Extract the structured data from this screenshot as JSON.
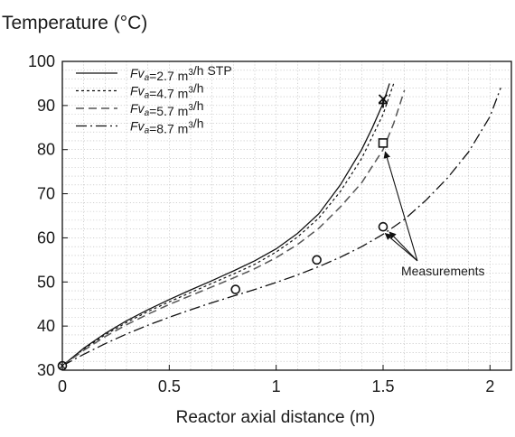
{
  "chart_data": {
    "type": "line",
    "title": "",
    "xlabel": "Reactor axial distance (m)",
    "ylabel": "Temperature (°C)",
    "xlim": [
      0,
      2.1
    ],
    "ylim": [
      30,
      100
    ],
    "x_ticks": [
      0,
      0.5,
      1,
      1.5,
      2
    ],
    "x_tick_labels": [
      "0",
      "0.5",
      "1",
      "1.5",
      "2"
    ],
    "y_ticks": [
      30,
      40,
      50,
      60,
      70,
      80,
      90,
      100
    ],
    "y_tick_labels": [
      "30",
      "40",
      "50",
      "60",
      "70",
      "80",
      "90",
      "100"
    ],
    "grid": true,
    "legend_position": "top-left",
    "series": [
      {
        "name": "Fva=2.7 m3/h STP",
        "legend_parts": [
          {
            "t": "Fv",
            "i": true
          },
          {
            "t": "a",
            "i": true,
            "sub": true
          },
          {
            "t": "=2.7 m"
          },
          {
            "t": "3",
            "sup": true
          },
          {
            "t": "/h STP"
          }
        ],
        "style": "solid",
        "color": "#111111",
        "x": [
          0,
          0.1,
          0.2,
          0.3,
          0.4,
          0.5,
          0.6,
          0.7,
          0.8,
          0.9,
          1.0,
          1.1,
          1.2,
          1.3,
          1.4,
          1.45,
          1.5,
          1.53
        ],
        "y": [
          31,
          35,
          38.3,
          41.2,
          43.7,
          46,
          48.2,
          50.3,
          52.5,
          54.8,
          57.5,
          61,
          65.5,
          72,
          80,
          85,
          90.5,
          95
        ]
      },
      {
        "name": "Fva=4.7 m3/h",
        "legend_parts": [
          {
            "t": "Fv",
            "i": true
          },
          {
            "t": "a",
            "i": true,
            "sub": true
          },
          {
            "t": "=4.7 m"
          },
          {
            "t": "3",
            "sup": true
          },
          {
            "t": "/h"
          }
        ],
        "style": "dotted",
        "color": "#111111",
        "x": [
          0,
          0.1,
          0.2,
          0.3,
          0.4,
          0.5,
          0.6,
          0.7,
          0.8,
          0.9,
          1.0,
          1.1,
          1.2,
          1.3,
          1.4,
          1.5,
          1.55
        ],
        "y": [
          31,
          34.8,
          38,
          40.8,
          43.3,
          45.5,
          47.6,
          49.7,
          51.8,
          54,
          56.8,
          60.2,
          64.5,
          70.5,
          78,
          88,
          95
        ]
      },
      {
        "name": "Fva=5.7 m3/h",
        "legend_parts": [
          {
            "t": "Fv",
            "i": true
          },
          {
            "t": "a",
            "i": true,
            "sub": true
          },
          {
            "t": "=5.7 m"
          },
          {
            "t": "3",
            "sup": true
          },
          {
            "t": "/h"
          }
        ],
        "style": "dashed",
        "color": "#555555",
        "x": [
          0,
          0.1,
          0.2,
          0.3,
          0.4,
          0.5,
          0.6,
          0.7,
          0.8,
          0.9,
          1.0,
          1.1,
          1.2,
          1.3,
          1.4,
          1.5,
          1.55,
          1.6
        ],
        "y": [
          31,
          34.5,
          37.6,
          40.3,
          42.7,
          44.9,
          46.9,
          48.9,
          50.9,
          53,
          55.5,
          58.5,
          62.2,
          67,
          72.5,
          80,
          86,
          93.5
        ]
      },
      {
        "name": "Fva=8.7 m3/h",
        "legend_parts": [
          {
            "t": "Fv",
            "i": true
          },
          {
            "t": "a",
            "i": true,
            "sub": true
          },
          {
            "t": "=8.7 m"
          },
          {
            "t": "3",
            "sup": true
          },
          {
            "t": "/h"
          }
        ],
        "style": "dashdot",
        "color": "#111111",
        "x": [
          0,
          0.1,
          0.2,
          0.3,
          0.4,
          0.5,
          0.6,
          0.7,
          0.8,
          0.9,
          1.0,
          1.1,
          1.2,
          1.3,
          1.4,
          1.5,
          1.6,
          1.7,
          1.8,
          1.9,
          2.0,
          2.05
        ],
        "y": [
          31,
          33.6,
          36,
          38.2,
          40.2,
          42,
          43.7,
          45.3,
          46.8,
          48.3,
          49.9,
          51.6,
          53.5,
          55.6,
          58,
          60.8,
          64.2,
          68.5,
          73.5,
          79.5,
          87.5,
          94
        ]
      }
    ],
    "measurements": [
      {
        "x": 0,
        "y": 31,
        "marker": "circle-x"
      },
      {
        "x": 1.5,
        "y": 91.5,
        "marker": "x"
      },
      {
        "x": 1.5,
        "y": 90.5,
        "marker": "plus"
      },
      {
        "x": 1.5,
        "y": 81.5,
        "marker": "square"
      },
      {
        "x": 1.5,
        "y": 62.5,
        "marker": "circle"
      },
      {
        "x": 1.19,
        "y": 55,
        "marker": "circle"
      },
      {
        "x": 0.81,
        "y": 48.3,
        "marker": "circle"
      }
    ],
    "annotation": {
      "text": "Measurements",
      "x": 1.78,
      "y": 52.5,
      "arrow_from": [
        1.66,
        54.8
      ],
      "arrow_targets": [
        [
          1.51,
          79.5
        ],
        [
          1.51,
          61
        ],
        [
          1.53,
          61.3
        ]
      ]
    }
  }
}
